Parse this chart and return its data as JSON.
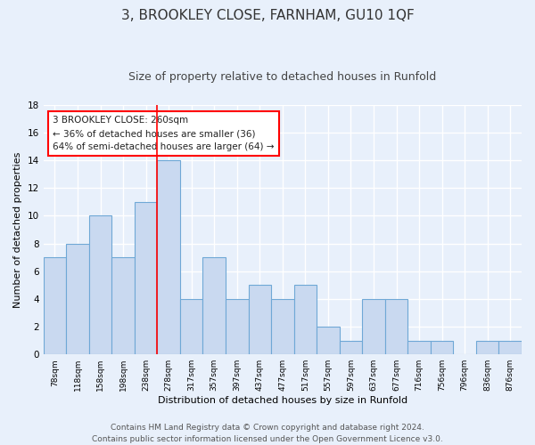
{
  "title": "3, BROOKLEY CLOSE, FARNHAM, GU10 1QF",
  "subtitle": "Size of property relative to detached houses in Runfold",
  "xlabel": "Distribution of detached houses by size in Runfold",
  "ylabel": "Number of detached properties",
  "categories": [
    "78sqm",
    "118sqm",
    "158sqm",
    "198sqm",
    "238sqm",
    "278sqm",
    "317sqm",
    "357sqm",
    "397sqm",
    "437sqm",
    "477sqm",
    "517sqm",
    "557sqm",
    "597sqm",
    "637sqm",
    "677sqm",
    "716sqm",
    "756sqm",
    "796sqm",
    "836sqm",
    "876sqm"
  ],
  "values": [
    7,
    8,
    10,
    7,
    11,
    14,
    4,
    7,
    4,
    5,
    4,
    5,
    2,
    1,
    4,
    4,
    1,
    1,
    0,
    1,
    1
  ],
  "bar_color": "#c9d9f0",
  "bar_edge_color": "#6fa8d6",
  "background_color": "#e8f0fb",
  "grid_color": "#ffffff",
  "annotation_line1": "3 BROOKLEY CLOSE: 260sqm",
  "annotation_line2": "← 36% of detached houses are smaller (36)",
  "annotation_line3": "64% of semi-detached houses are larger (64) →",
  "annotation_box_edge_color": "red",
  "redline_x": 4.5,
  "ylim": [
    0,
    18
  ],
  "yticks": [
    0,
    2,
    4,
    6,
    8,
    10,
    12,
    14,
    16,
    18
  ],
  "footer_line1": "Contains HM Land Registry data © Crown copyright and database right 2024.",
  "footer_line2": "Contains public sector information licensed under the Open Government Licence v3.0.",
  "title_fontsize": 11,
  "subtitle_fontsize": 9,
  "annotation_fontsize": 7.5,
  "footer_fontsize": 6.5,
  "ylabel_fontsize": 8,
  "xlabel_fontsize": 8
}
